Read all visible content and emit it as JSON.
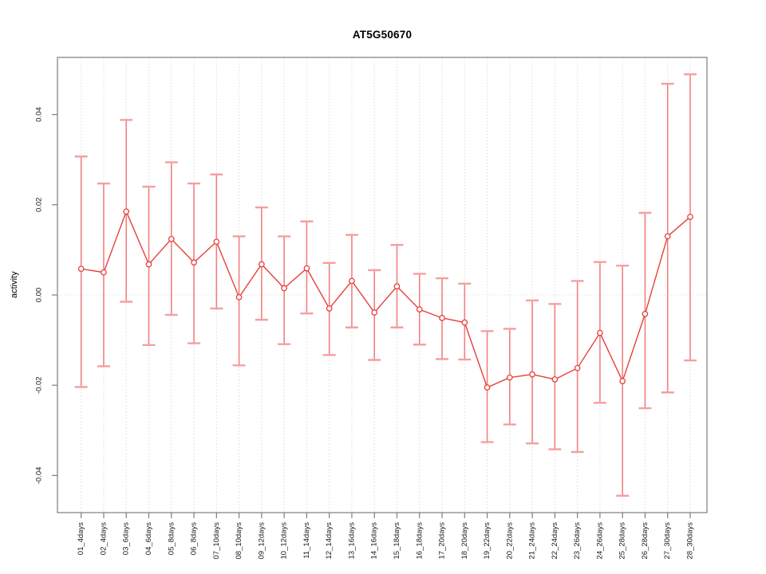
{
  "chart_data": {
    "type": "scatter",
    "title": "AT5G50670",
    "xlabel": "",
    "ylabel": "activity",
    "ylim": [
      -0.045,
      0.051
    ],
    "yticks": [
      0.04,
      0.02,
      0.0,
      -0.02,
      -0.04
    ],
    "ytick_labels": [
      "0.04",
      "0.02",
      "0.00",
      "-0.02",
      "-0.04"
    ],
    "grid": "vertical dotted gridline at every category; dotted horizontal line at y=0",
    "legend": "none",
    "error_bars": true,
    "categories": [
      "01_4days",
      "02_4days",
      "03_6days",
      "04_6days",
      "05_8days",
      "06_8days",
      "07_10days",
      "08_10days",
      "09_12days",
      "10_12days",
      "11_14days",
      "12_14days",
      "13_16days",
      "14_16days",
      "15_18days",
      "16_18days",
      "17_20days",
      "18_20days",
      "19_22days",
      "20_22days",
      "21_24days",
      "22_24days",
      "23_26days",
      "24_26days",
      "25_28days",
      "26_28days",
      "27_30days",
      "28_30days"
    ],
    "series": [
      {
        "name": "AT5G50670",
        "values": [
          0.0058,
          0.005,
          0.0185,
          0.0068,
          0.0124,
          0.0072,
          0.0118,
          -0.0005,
          0.0068,
          0.0015,
          0.0059,
          -0.003,
          0.0031,
          -0.0039,
          0.0019,
          -0.0032,
          -0.0051,
          -0.0061,
          -0.0205,
          -0.0183,
          -0.0176,
          -0.0187,
          -0.0162,
          -0.0084,
          -0.0191,
          -0.0042,
          0.013,
          0.0173
        ],
        "lower": [
          -0.0204,
          -0.0158,
          -0.0015,
          -0.0111,
          -0.0044,
          -0.0107,
          -0.003,
          -0.0156,
          -0.0055,
          -0.0109,
          -0.0041,
          -0.0133,
          -0.0072,
          -0.0144,
          -0.0072,
          -0.011,
          -0.0142,
          -0.0143,
          -0.0326,
          -0.0287,
          -0.0329,
          -0.0342,
          -0.0348,
          -0.0239,
          -0.0445,
          -0.0251,
          -0.0216,
          -0.0145
        ],
        "upper": [
          0.0307,
          0.0247,
          0.0388,
          0.024,
          0.0294,
          0.0247,
          0.0267,
          0.013,
          0.0194,
          0.013,
          0.0163,
          0.0071,
          0.0133,
          0.0055,
          0.0111,
          0.0047,
          0.0037,
          0.0025,
          -0.008,
          -0.0075,
          -0.0012,
          -0.002,
          0.0031,
          0.0073,
          0.0065,
          0.0182,
          0.0468,
          0.0489
        ]
      }
    ],
    "colors": {
      "error_bar": "#f28080",
      "error_cap": "#f79e9e",
      "line": "#e6413c",
      "point_stroke": "#e6413c",
      "point_fill": "#ffffff",
      "grid": "#dcdcdc",
      "zero_line": "#e6e2e2",
      "frame": "#7d7d7d",
      "text": "#1a1a1a"
    }
  }
}
